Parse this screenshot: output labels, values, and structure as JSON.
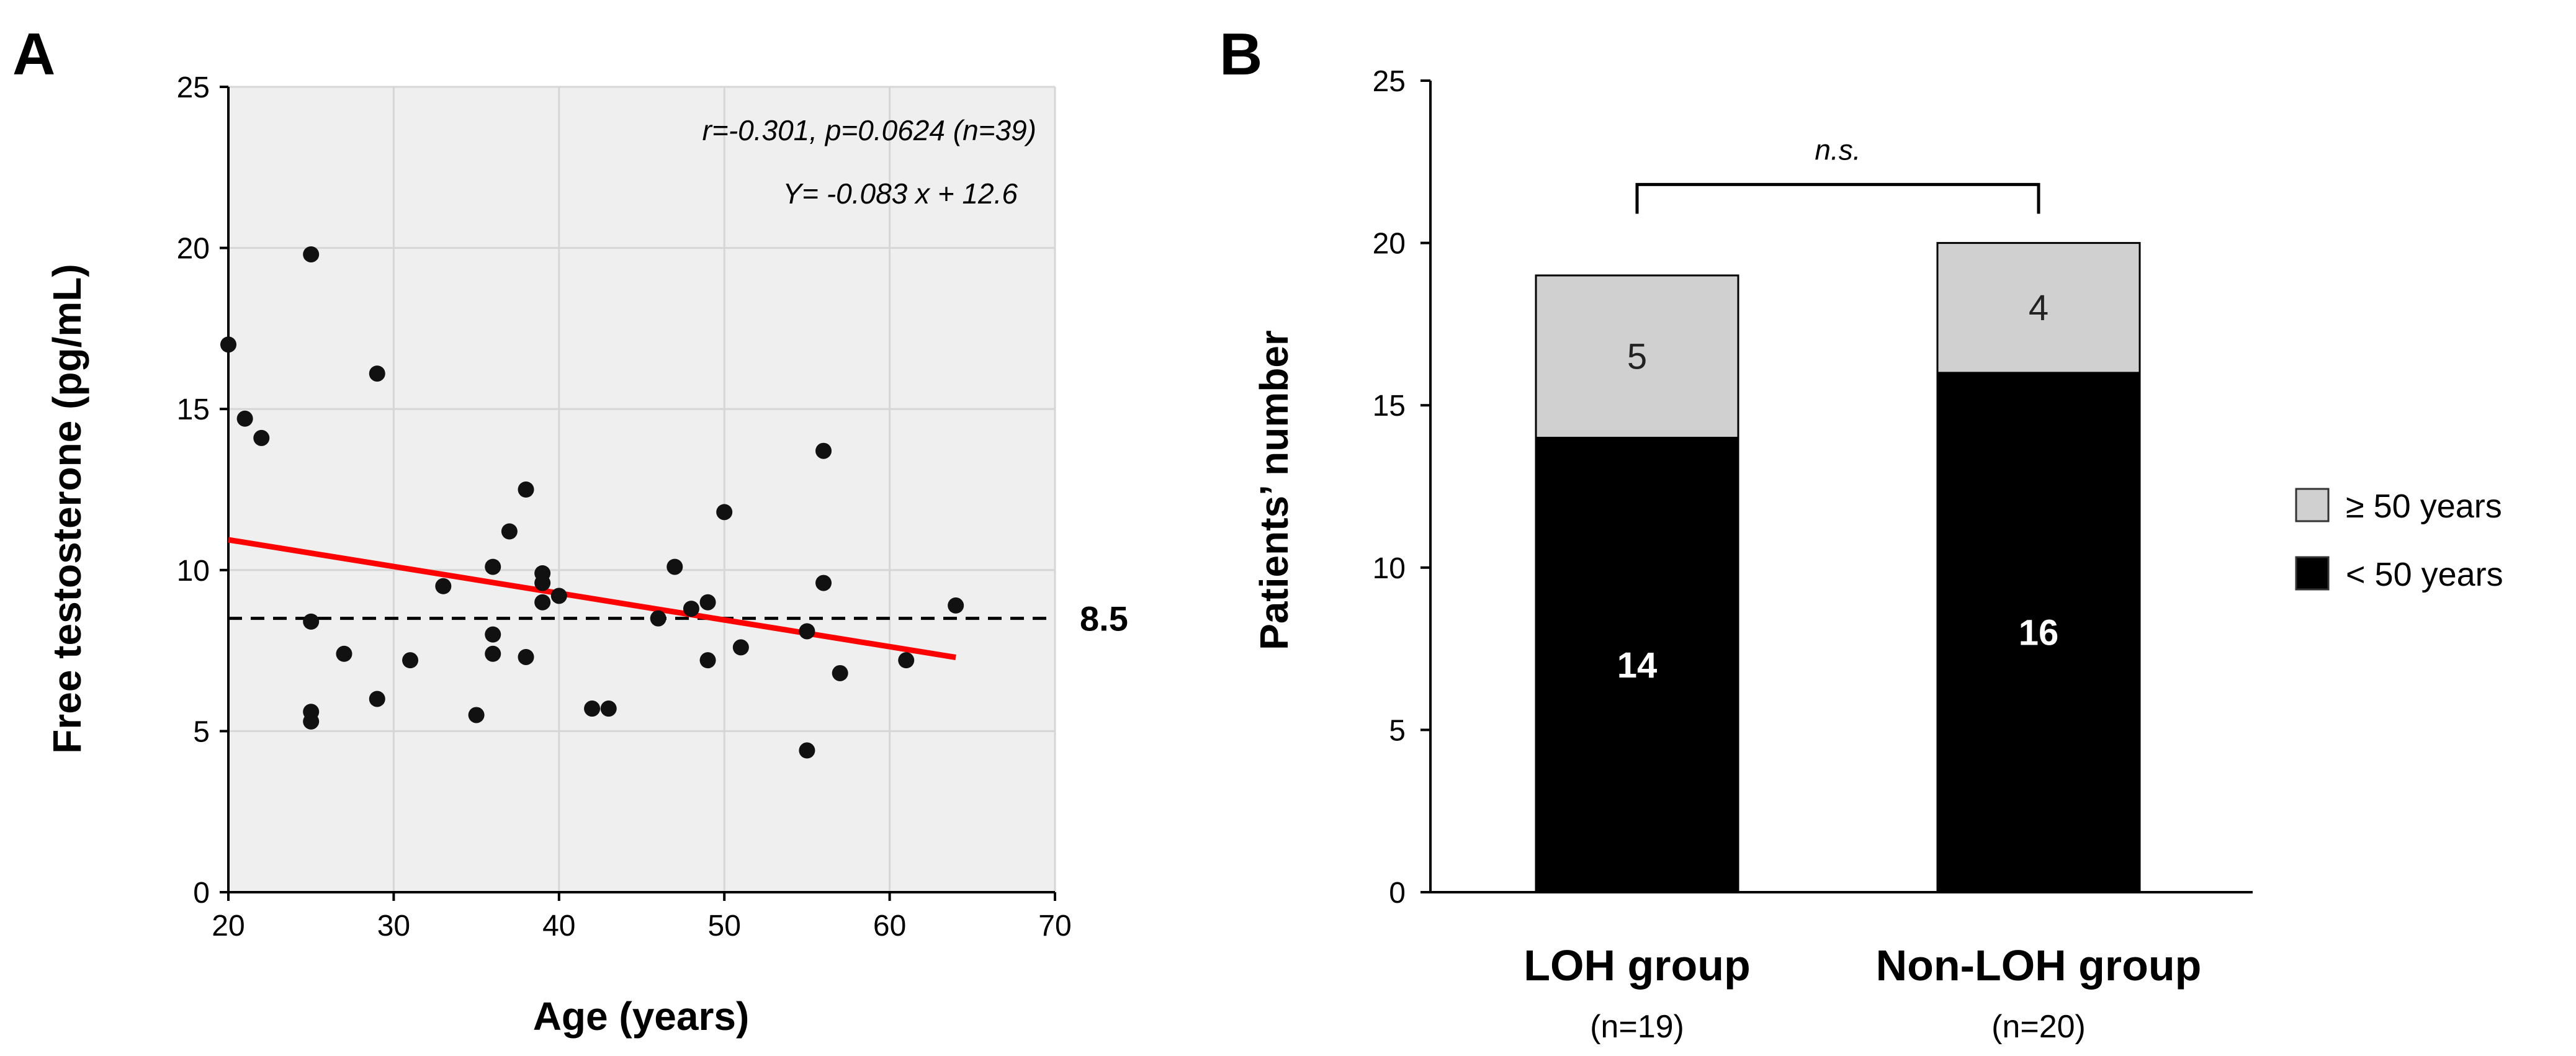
{
  "chart_data": [
    {
      "panel": "A",
      "type": "scatter",
      "xlabel": "Age (years)",
      "ylabel": "Free testosterone (pg/mL)",
      "xlim": [
        20,
        70
      ],
      "ylim": [
        0,
        25
      ],
      "xticks": [
        20,
        30,
        40,
        50,
        60,
        70
      ],
      "yticks": [
        0,
        5,
        10,
        15,
        20,
        25
      ],
      "grid": true,
      "stats_text": "r=-0.301, p=0.0624 (n=39)",
      "equation_text": "Y= -0.083 x + 12.6",
      "reference_line": {
        "y": 8.5,
        "label": "8.5"
      },
      "regression_line": {
        "color": "#ff0000",
        "x": [
          20,
          64
        ],
        "y": [
          10.94,
          7.29
        ]
      },
      "points": [
        [
          20,
          17.0
        ],
        [
          21,
          14.7
        ],
        [
          22,
          14.1
        ],
        [
          25,
          19.8
        ],
        [
          25,
          8.4
        ],
        [
          25,
          5.6
        ],
        [
          25,
          5.3
        ],
        [
          27,
          7.4
        ],
        [
          29,
          16.1
        ],
        [
          29,
          6.0
        ],
        [
          31,
          7.2
        ],
        [
          35,
          5.5
        ],
        [
          36,
          10.1
        ],
        [
          36,
          8.0
        ],
        [
          36,
          7.4
        ],
        [
          37,
          11.2
        ],
        [
          38,
          12.5
        ],
        [
          38,
          7.3
        ],
        [
          39,
          9.9
        ],
        [
          39,
          9.6
        ],
        [
          39,
          9.0
        ],
        [
          42,
          5.7
        ],
        [
          43,
          5.7
        ],
        [
          46,
          8.5
        ],
        [
          47,
          10.1
        ],
        [
          49,
          9.0
        ],
        [
          49,
          7.2
        ],
        [
          50,
          11.8
        ],
        [
          51,
          7.6
        ],
        [
          55,
          8.1
        ],
        [
          55,
          4.4
        ],
        [
          56,
          13.7
        ],
        [
          56,
          9.6
        ],
        [
          57,
          6.8
        ],
        [
          61,
          7.2
        ],
        [
          64,
          8.9
        ],
        [
          48,
          8.8
        ],
        [
          40,
          9.2
        ],
        [
          33,
          9.5
        ]
      ]
    },
    {
      "panel": "B",
      "type": "bar",
      "stacked": true,
      "ylabel": "Patients’ number",
      "ylim": [
        0,
        25
      ],
      "yticks": [
        0,
        5,
        10,
        15,
        20,
        25
      ],
      "categories": [
        "LOH group",
        "Non-LOH group"
      ],
      "category_sublabels": [
        "(n=19)",
        "(n=20)"
      ],
      "series": [
        {
          "name": "< 50 years",
          "values": [
            14,
            16
          ],
          "color": "#000000"
        },
        {
          "name": "≥ 50 years",
          "values": [
            5,
            4
          ],
          "color": "#d0d0d0"
        }
      ],
      "significance": "n.s.",
      "legend": [
        "≥ 50 years",
        "< 50 years"
      ]
    }
  ]
}
